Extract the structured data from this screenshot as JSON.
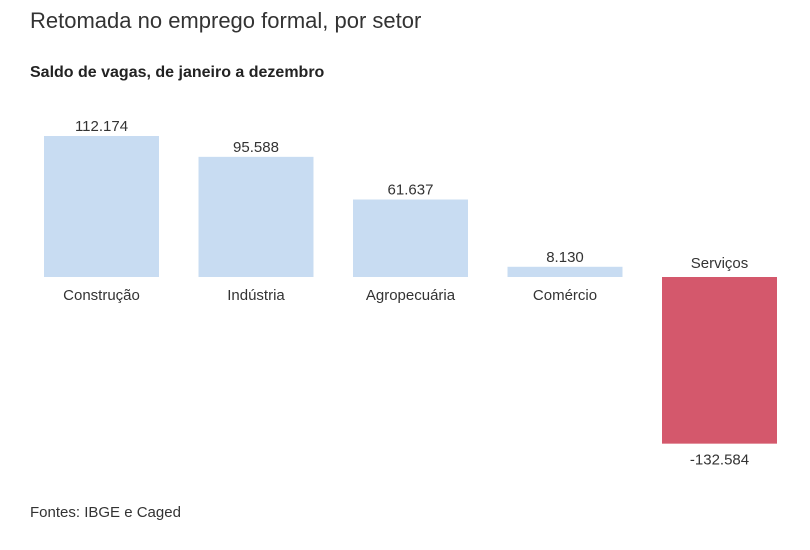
{
  "title": "Retomada no emprego formal, por setor",
  "subtitle": "Saldo de vagas, de janeiro a dezembro",
  "source": "Fontes: IBGE e Caged",
  "colors": {
    "positive": "#c8dcf2",
    "negative": "#d4586c"
  },
  "chart_data": {
    "type": "bar",
    "categories": [
      "Construção",
      "Indústria",
      "Agropecuária",
      "Comércio",
      "Serviços"
    ],
    "values": [
      112174,
      95588,
      61637,
      8130,
      -132584
    ],
    "value_labels": [
      "112.174",
      "95.588",
      "61.637",
      "8.130",
      "-132.584"
    ],
    "title": "Retomada no emprego formal, por setor",
    "subtitle": "Saldo de vagas, de janeiro a dezembro",
    "xlabel": "",
    "ylabel": "",
    "grid": false,
    "legend": "none"
  }
}
